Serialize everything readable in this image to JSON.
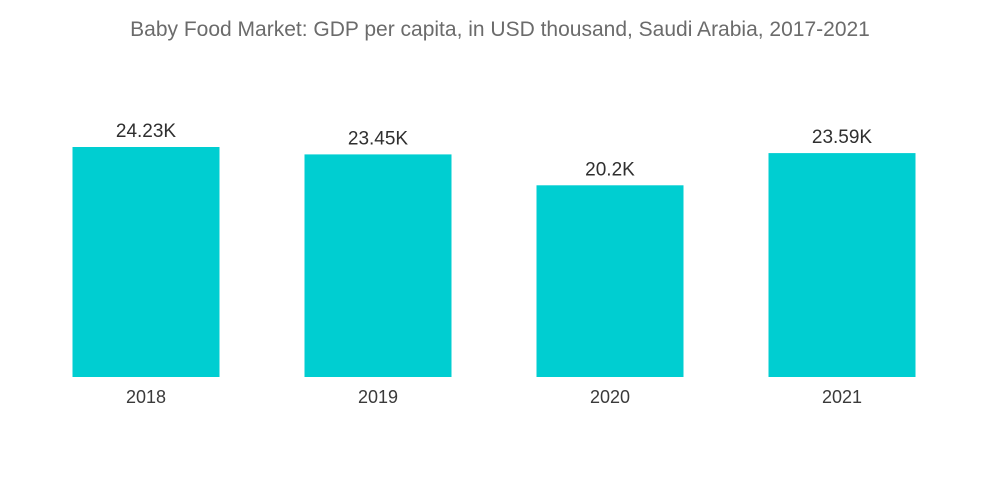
{
  "chart_data": {
    "type": "bar",
    "title": "Baby Food Market: GDP per capita, in USD thousand, Saudi Arabia, 2017-2021",
    "categories": [
      "2018",
      "2019",
      "2020",
      "2021"
    ],
    "values": [
      24.23,
      23.45,
      20.2,
      23.59
    ],
    "value_labels": [
      "24.23K",
      "23.45K",
      "20.2K",
      "23.59K"
    ],
    "xlabel": "",
    "ylabel": "",
    "ylim": [
      0,
      24.23
    ],
    "grid": false,
    "legend": "none",
    "bar_color": "#00CED1"
  }
}
